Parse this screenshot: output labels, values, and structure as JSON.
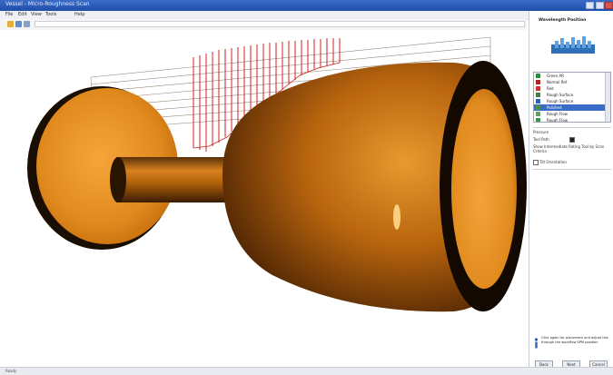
{
  "window": {
    "title": "Vessel - Micro-Roughness Scan",
    "min_glyph": "–",
    "max_glyph": "□",
    "close_glyph": "×"
  },
  "menu": {
    "items": [
      "File",
      "Edit",
      "View",
      "Tools",
      "Help"
    ]
  },
  "toolbar": {
    "field_value": ""
  },
  "panel": {
    "title": "Wavelength Position",
    "list_items": [
      {
        "label": "Green AR",
        "color": "#2e8b3a"
      },
      {
        "label": "Normal Ref",
        "color": "#b02020"
      },
      {
        "label": "Red",
        "color": "#d03030"
      },
      {
        "label": "Rough Surface",
        "color": "#4a7a4a"
      },
      {
        "label": "Rough Surface",
        "color": "#2f5fb0"
      },
      {
        "label": "Polished",
        "color": "#4a8f4a",
        "selected": true
      },
      {
        "label": "Rough Flow",
        "color": "#6a9a6a"
      },
      {
        "label": "Rough Flow",
        "color": "#3f8f4f"
      }
    ],
    "section_label": "Pressure",
    "checkbox_label": "Tool Path",
    "description": "Show Intermediate Rating Tool by Scan Criteria",
    "option_label": "Tilt Orientation",
    "note": "Click again for placement and adjust this through the workflow SPM position",
    "buttons": [
      "Back",
      "Next",
      "Cancel"
    ]
  },
  "status": {
    "text": "Ready"
  },
  "colors": {
    "body": "#e08a1e",
    "rim": "#1a0d02",
    "rays": "#d02020",
    "lines": "#9a8a7a",
    "accent": "#3a6cc7"
  }
}
